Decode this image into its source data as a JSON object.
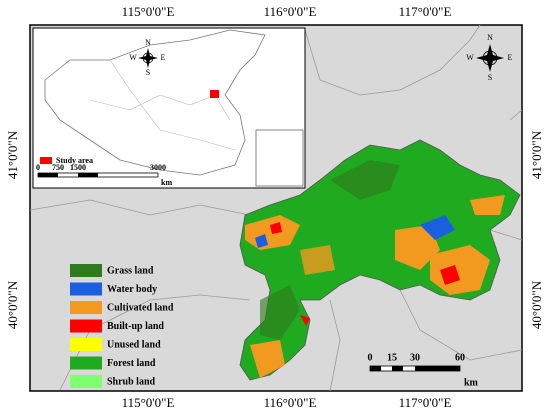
{
  "axes": {
    "top": [
      "115°0'0\"E",
      "116°0'0\"E",
      "117°0'0\"E"
    ],
    "bottom": [
      "115°0'0\"E",
      "116°0'0\"E",
      "117°0'0\"E"
    ],
    "left": [
      "41°0'0\"N",
      "40°0'0\"N"
    ],
    "right": [
      "41°0'0\"N",
      "40°0'0\"N"
    ]
  },
  "legend": [
    {
      "label": "Grass land",
      "color": "#2e7a1c"
    },
    {
      "label": "Water body",
      "color": "#1a5fe0"
    },
    {
      "label": "Cultivated land",
      "color": "#f29a1f"
    },
    {
      "label": "Built-up land",
      "color": "#ff0000"
    },
    {
      "label": "Unused land",
      "color": "#ffff00"
    },
    {
      "label": "Forest land",
      "color": "#1faa1f"
    },
    {
      "label": "Shrub land",
      "color": "#7dff6e"
    }
  ],
  "inset": {
    "legend": "Study area",
    "scale": [
      0,
      750,
      1500,
      3000
    ],
    "unit": "km",
    "compass": [
      "N",
      "S",
      "W",
      "E"
    ]
  },
  "scale": {
    "ticks": [
      0,
      15,
      30,
      60
    ],
    "unit": "km"
  },
  "compass": [
    "N",
    "S",
    "W",
    "E"
  ]
}
